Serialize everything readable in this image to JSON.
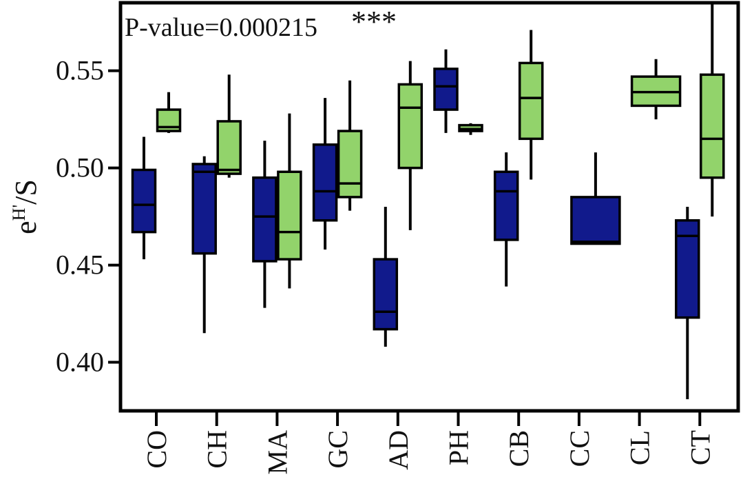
{
  "chart_data": {
    "type": "boxplot",
    "annotation": "P-value=0.000215",
    "significance": "***",
    "ylabel": "e",
    "ylabel_superscript": "H'",
    "ylabel_suffix": "/S",
    "ylim": [
      0.375,
      0.585
    ],
    "yticks": [
      0.4,
      0.45,
      0.5,
      0.55
    ],
    "ytick_labels": [
      "0.40",
      "0.45",
      "0.50",
      "0.55"
    ],
    "categories": [
      "CO",
      "CH",
      "MA",
      "GC",
      "AD",
      "PH",
      "CB",
      "CC",
      "CL",
      "CT"
    ],
    "grid": false,
    "series": [
      {
        "color": "#111a8c",
        "boxes": [
          {
            "min": 0.453,
            "q1": 0.467,
            "median": 0.481,
            "q3": 0.499,
            "max": 0.516
          },
          {
            "min": 0.415,
            "q1": 0.456,
            "median": 0.498,
            "q3": 0.502,
            "max": 0.506
          },
          {
            "min": 0.428,
            "q1": 0.452,
            "median": 0.475,
            "q3": 0.495,
            "max": 0.514
          },
          {
            "min": 0.458,
            "q1": 0.473,
            "median": 0.488,
            "q3": 0.512,
            "max": 0.536
          },
          {
            "min": 0.408,
            "q1": 0.417,
            "median": 0.426,
            "q3": 0.453,
            "max": 0.48
          },
          {
            "min": 0.518,
            "q1": 0.53,
            "median": 0.542,
            "q3": 0.551,
            "max": 0.561
          },
          {
            "min": 0.439,
            "q1": 0.463,
            "median": 0.488,
            "q3": 0.498,
            "max": 0.508
          },
          {
            "min": 0.461,
            "q1": 0.461,
            "median": 0.462,
            "q3": 0.485,
            "max": 0.508
          },
          null,
          {
            "min": 0.381,
            "q1": 0.423,
            "median": 0.465,
            "q3": 0.473,
            "max": 0.48
          }
        ]
      },
      {
        "color": "#92d36b",
        "boxes": [
          {
            "min": 0.518,
            "q1": 0.519,
            "median": 0.521,
            "q3": 0.53,
            "max": 0.539
          },
          {
            "min": 0.495,
            "q1": 0.497,
            "median": 0.499,
            "q3": 0.524,
            "max": 0.548
          },
          {
            "min": 0.438,
            "q1": 0.453,
            "median": 0.467,
            "q3": 0.498,
            "max": 0.528
          },
          {
            "min": 0.478,
            "q1": 0.485,
            "median": 0.492,
            "q3": 0.519,
            "max": 0.545
          },
          {
            "min": 0.468,
            "q1": 0.5,
            "median": 0.531,
            "q3": 0.543,
            "max": 0.555
          },
          {
            "min": 0.517,
            "q1": 0.519,
            "median": 0.52,
            "q3": 0.522,
            "max": 0.523
          },
          {
            "min": 0.494,
            "q1": 0.515,
            "median": 0.536,
            "q3": 0.554,
            "max": 0.571
          },
          null,
          {
            "min": 0.525,
            "q1": 0.532,
            "median": 0.539,
            "q3": 0.547,
            "max": 0.556
          },
          {
            "min": 0.475,
            "q1": 0.495,
            "median": 0.515,
            "q3": 0.548,
            "max": 0.585
          }
        ]
      }
    ]
  }
}
